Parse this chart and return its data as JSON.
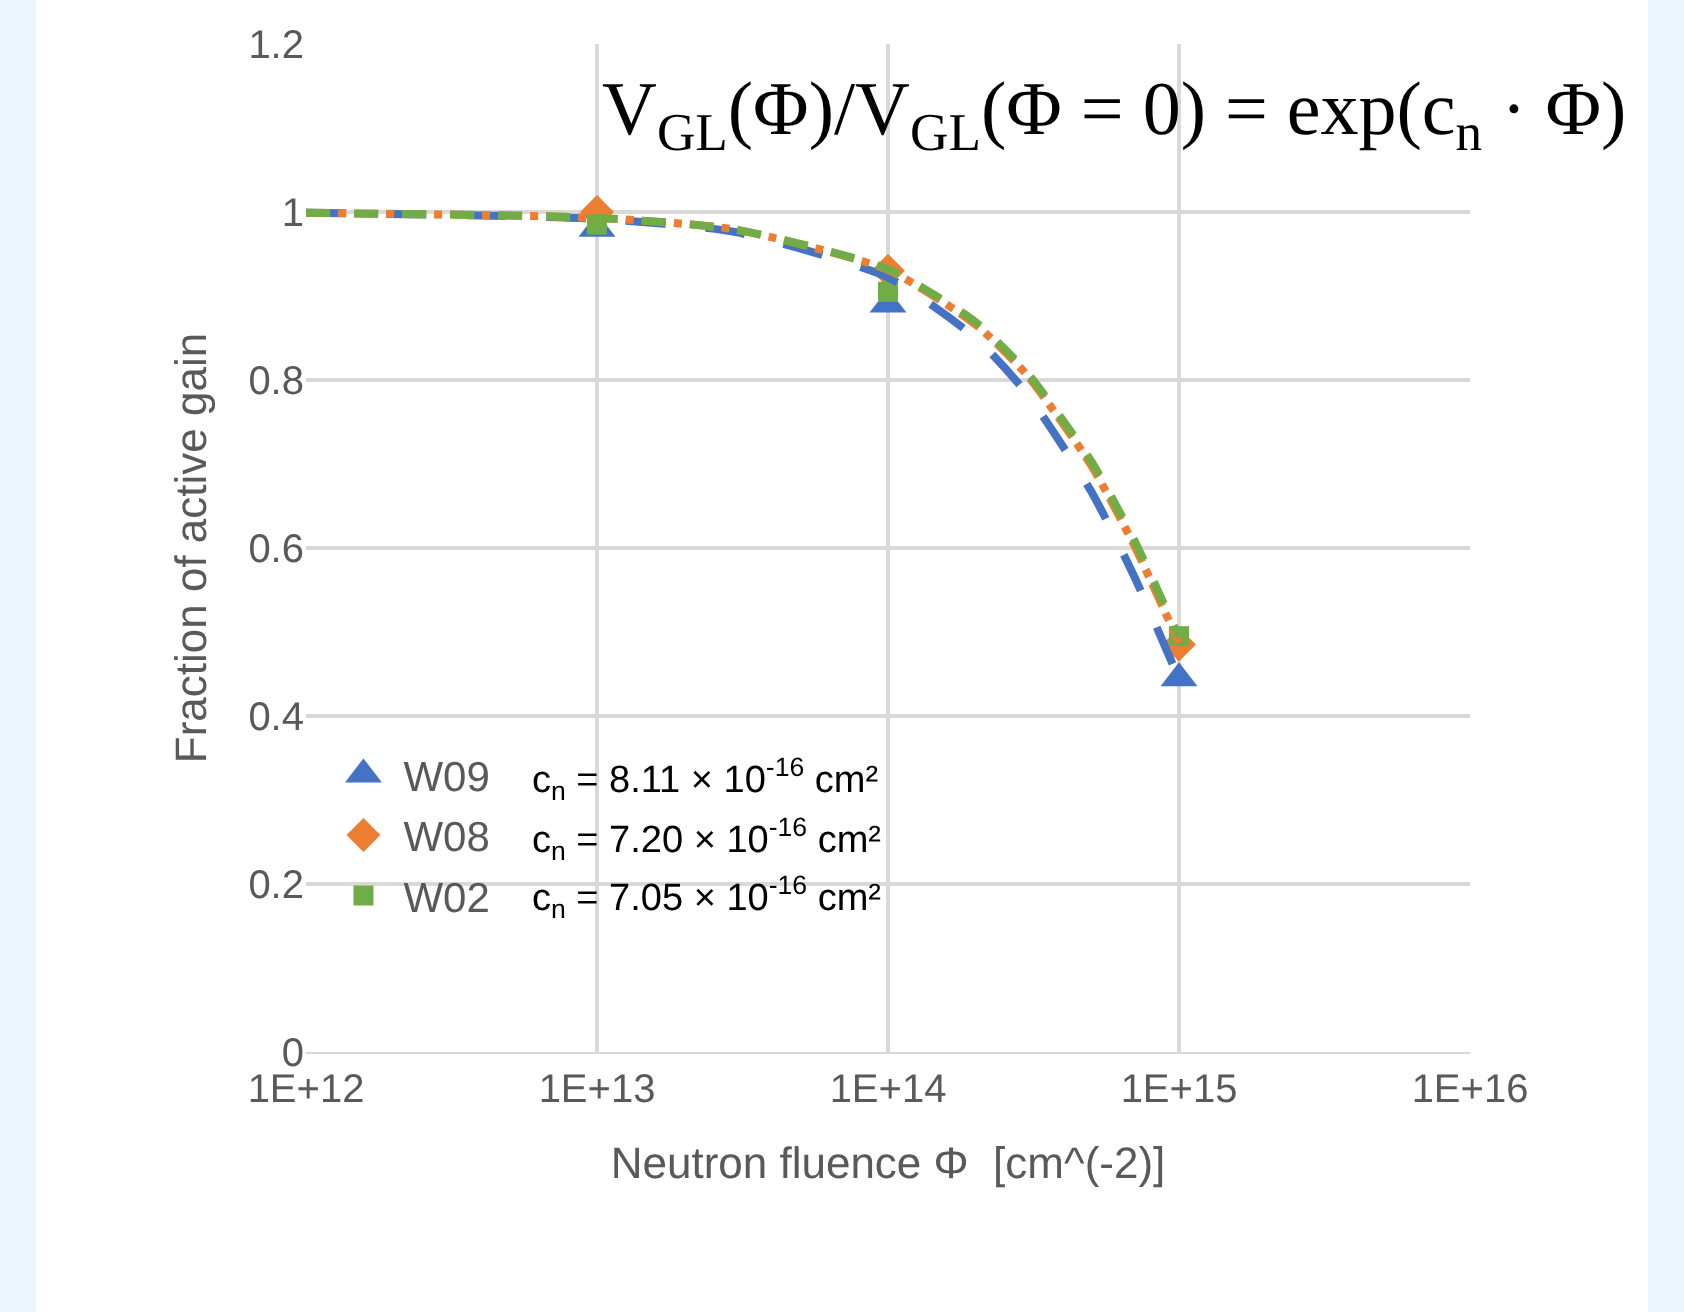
{
  "chart_data": {
    "type": "scatter",
    "xlabel": "Neutron fluence Φ  [cm^(-2)]",
    "ylabel": "Fraction of active gain",
    "log": "x",
    "grid": true,
    "legend": "bottom left",
    "xlim": [
      1000000000000.0,
      1e+16
    ],
    "xticks": [
      {
        "value": 1000000000000.0,
        "label": "1E+12"
      },
      {
        "value": 10000000000000.0,
        "label": "1E+13"
      },
      {
        "value": 100000000000000.0,
        "label": "1E+14"
      },
      {
        "value": 1000000000000000.0,
        "label": "1E+15"
      },
      {
        "value": 1e+16,
        "label": "1E+16"
      }
    ],
    "ylim": [
      0,
      1.2
    ],
    "yticks": [
      0,
      0.2,
      0.4,
      0.6,
      0.8,
      1,
      1.2
    ],
    "annotations": [
      "V$_{GL}$(Φ)/V$_{GL}$(Φ = 0) = exp(c$_{n}$ · Φ)",
      "c$_{n}$ = 8.11 × 10$^{-16}$ cm²",
      "c$_{n}$ = 7.20 × 10$^{-16}$ cm²",
      "c$_{n}$ = 7.05 × 10$^{-16}$ cm²"
    ],
    "series": [
      {
        "name": "W09",
        "marker": "triangle",
        "color": "#4472c4",
        "x": [
          10000000000000.0,
          100000000000000.0,
          1000000000000000.0
        ],
        "values": [
          0.98,
          0.89,
          0.445
        ]
      },
      {
        "name": "W08",
        "marker": "diamond",
        "color": "#ed7d31",
        "x": [
          10000000000000.0,
          100000000000000.0,
          1000000000000000.0
        ],
        "values": [
          1.0,
          0.93,
          0.485
        ]
      },
      {
        "name": "W02",
        "marker": "square",
        "color": "#70ad47",
        "x": [
          10000000000000.0,
          100000000000000.0,
          1000000000000000.0
        ],
        "values": [
          0.985,
          0.905,
          0.495
        ]
      },
      {
        "type": "line",
        "line_style": "dashed",
        "color": "#4472c4",
        "x": [
          1000000000000.0,
          10000000000000.0,
          30000000000000.0,
          100000000000000.0,
          200000000000000.0,
          300000000000000.0,
          500000000000000.0,
          700000000000000.0,
          1000000000000000.0
        ],
        "values": [
          0.999,
          0.992,
          0.976,
          0.922,
          0.85,
          0.784,
          0.667,
          0.567,
          0.444
        ]
      },
      {
        "type": "line",
        "line_style": "dashed",
        "color": "#ed7d31",
        "x": [
          1000000000000.0,
          10000000000000.0,
          30000000000000.0,
          100000000000000.0,
          200000000000000.0,
          300000000000000.0,
          500000000000000.0,
          700000000000000.0,
          1000000000000000.0
        ],
        "values": [
          0.999,
          0.993,
          0.979,
          0.931,
          0.866,
          0.806,
          0.698,
          0.604,
          0.487
        ]
      },
      {
        "type": "line",
        "line_style": "dashed",
        "color": "#70ad47",
        "x": [
          1000000000000.0,
          10000000000000.0,
          30000000000000.0,
          100000000000000.0,
          200000000000000.0,
          300000000000000.0,
          500000000000000.0,
          700000000000000.0,
          1000000000000000.0
        ],
        "values": [
          0.999,
          0.993,
          0.979,
          0.932,
          0.869,
          0.809,
          0.703,
          0.61,
          0.494
        ]
      }
    ]
  }
}
